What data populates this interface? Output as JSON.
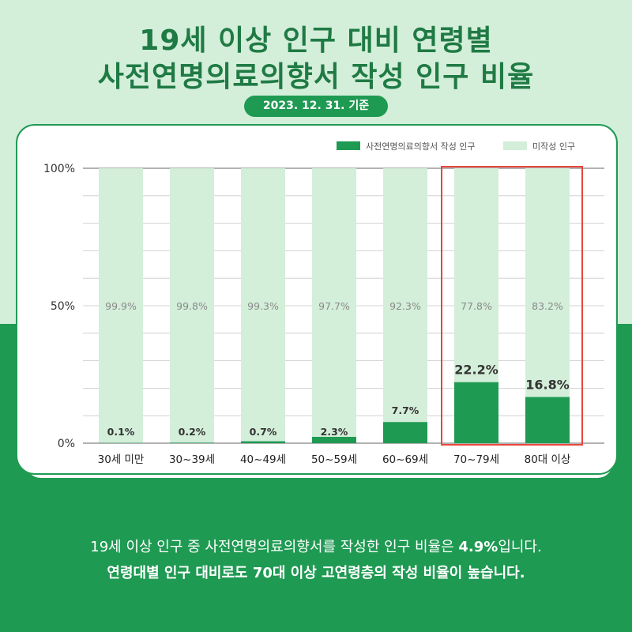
{
  "title": {
    "line1": "19세 이상 인구 대비 연령별",
    "line2": "사전연명의료의향서 작성 인구 비율"
  },
  "date_label": "2023. 12. 31. 기준",
  "footer": {
    "line1_before": "19세 이상 인구 중 사전연명의료의향서를 작성한 인구 비율은 ",
    "line1_bold": "4.9%",
    "line1_after": "입니다.",
    "line2_bold": "연령대별 인구 대비",
    "line2_after": "로도 70대 이상 고연령층의 작성 비율이 높습니다."
  },
  "colors": {
    "written": "#1f9a53",
    "not_written": "#d3eed9",
    "highlight": "#e8463a",
    "title": "#1f7a44"
  },
  "chart_data": {
    "type": "bar",
    "stacked": true,
    "categories": [
      "30세 미만",
      "30~39세",
      "40~49세",
      "50~59세",
      "60~69세",
      "70~79세",
      "80대 이상"
    ],
    "series": [
      {
        "name": "사전연명의료의향서 작성 인구",
        "values": [
          0.1,
          0.2,
          0.7,
          2.3,
          7.7,
          22.2,
          16.8
        ]
      },
      {
        "name": "미작성 인구",
        "values": [
          99.9,
          99.8,
          99.3,
          97.7,
          92.3,
          77.8,
          83.2
        ]
      }
    ],
    "data_labels": {
      "written": [
        "0.1%",
        "0.2%",
        "0.7%",
        "2.3%",
        "7.7%",
        "22.2%",
        "16.8%"
      ],
      "not_written": [
        "99.9%",
        "99.8%",
        "99.3%",
        "97.7%",
        "92.3%",
        "77.8%",
        "83.2%"
      ]
    },
    "yticks": [
      "0%",
      "50%",
      "100%"
    ],
    "ylim": [
      0,
      100
    ],
    "highlight_categories": [
      "70~79세",
      "80대 이상"
    ],
    "legend_position": "top-right",
    "grid": true
  }
}
